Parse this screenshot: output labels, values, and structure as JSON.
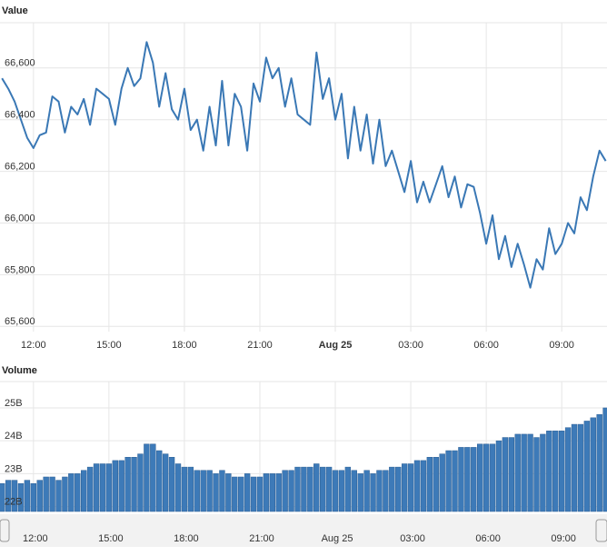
{
  "chart_data": [
    {
      "type": "line",
      "title": "Value",
      "color": "#3a78b5",
      "x": [
        -1.25,
        -1,
        -0.75,
        -0.5,
        -0.25,
        0,
        0.25,
        0.5,
        0.75,
        1,
        1.25,
        1.5,
        1.75,
        2,
        2.25,
        2.5,
        2.75,
        3,
        3.25,
        3.5,
        3.75,
        4,
        4.25,
        4.5,
        4.75,
        5,
        5.25,
        5.5,
        5.75,
        6,
        6.25,
        6.5,
        6.75,
        7,
        7.25,
        7.5,
        7.75,
        8,
        8.25,
        8.5,
        8.75,
        9,
        9.25,
        9.5,
        9.75,
        10,
        10.25,
        10.5,
        10.75,
        11,
        11.25,
        11.5,
        11.75,
        12,
        12.25,
        12.5,
        12.75,
        13,
        13.25,
        13.5,
        13.75,
        14,
        14.25,
        14.5,
        14.75,
        15,
        15.25,
        15.5,
        15.75,
        16,
        16.25,
        16.5,
        16.75,
        17,
        17.25,
        17.5,
        17.75,
        18,
        18.25,
        18.5,
        18.75,
        19,
        19.25,
        19.5,
        19.75,
        20,
        20.25,
        20.5,
        20.75,
        21,
        21.25,
        21.5,
        21.75,
        22,
        22.25,
        22.5,
        22.75
      ],
      "values": [
        66560,
        66520,
        66470,
        66400,
        66330,
        66290,
        66340,
        66350,
        66490,
        66470,
        66350,
        66450,
        66420,
        66480,
        66380,
        66520,
        66500,
        66480,
        66380,
        66520,
        66600,
        66530,
        66560,
        66700,
        66620,
        66450,
        66580,
        66440,
        66400,
        66520,
        66360,
        66400,
        66280,
        66450,
        66300,
        66550,
        66300,
        66500,
        66450,
        66280,
        66540,
        66470,
        66640,
        66560,
        66600,
        66450,
        66560,
        66420,
        66400,
        66380,
        66660,
        66480,
        66560,
        66400,
        66500,
        66250,
        66450,
        66280,
        66420,
        66230,
        66400,
        66220,
        66280,
        66200,
        66120,
        66240,
        66080,
        66160,
        66080,
        66150,
        66220,
        66100,
        66180,
        66060,
        66150,
        66140,
        66040,
        65920,
        66030,
        65860,
        65950,
        65830,
        65920,
        65840,
        65750,
        65860,
        65820,
        65980,
        65880,
        65920,
        66000,
        65960,
        66100,
        66050,
        66180,
        66280,
        66240
      ],
      "xlim": [
        -1.33,
        22.8
      ],
      "ylim": [
        65580,
        66775
      ],
      "xticks": [
        {
          "value": 0,
          "label": "12:00"
        },
        {
          "value": 3,
          "label": "15:00"
        },
        {
          "value": 6,
          "label": "18:00"
        },
        {
          "value": 9,
          "label": "21:00"
        },
        {
          "value": 12,
          "label": "Aug 25"
        },
        {
          "value": 15,
          "label": "03:00"
        },
        {
          "value": 18,
          "label": "06:00"
        },
        {
          "value": 21,
          "label": "09:00"
        }
      ],
      "yticks": [
        {
          "value": 65600,
          "label": "65,600"
        },
        {
          "value": 65800,
          "label": "65,800"
        },
        {
          "value": 66000,
          "label": "66,000"
        },
        {
          "value": 66200,
          "label": "66,200"
        },
        {
          "value": 66400,
          "label": "66,400"
        },
        {
          "value": 66600,
          "label": "66,600"
        }
      ],
      "grid": true
    },
    {
      "type": "bar",
      "title": "Volume",
      "color": "#3d7ab8",
      "x": [
        -1.25,
        -1,
        -0.75,
        -0.5,
        -0.25,
        0,
        0.25,
        0.5,
        0.75,
        1,
        1.25,
        1.5,
        1.75,
        2,
        2.25,
        2.5,
        2.75,
        3,
        3.25,
        3.5,
        3.75,
        4,
        4.25,
        4.5,
        4.75,
        5,
        5.25,
        5.5,
        5.75,
        6,
        6.25,
        6.5,
        6.75,
        7,
        7.25,
        7.5,
        7.75,
        8,
        8.25,
        8.5,
        8.75,
        9,
        9.25,
        9.5,
        9.75,
        10,
        10.25,
        10.5,
        10.75,
        11,
        11.25,
        11.5,
        11.75,
        12,
        12.25,
        12.5,
        12.75,
        13,
        13.25,
        13.5,
        13.75,
        14,
        14.25,
        14.5,
        14.75,
        15,
        15.25,
        15.5,
        15.75,
        16,
        16.25,
        16.5,
        16.75,
        17,
        17.25,
        17.5,
        17.75,
        18,
        18.25,
        18.5,
        18.75,
        19,
        19.25,
        19.5,
        19.75,
        20,
        20.25,
        20.5,
        20.75,
        21,
        21.25,
        21.5,
        21.75,
        22,
        22.25,
        22.5,
        22.75
      ],
      "values": [
        22.7,
        22.8,
        22.8,
        22.7,
        22.8,
        22.7,
        22.8,
        22.9,
        22.9,
        22.8,
        22.9,
        23.0,
        23.0,
        23.1,
        23.2,
        23.3,
        23.3,
        23.3,
        23.4,
        23.4,
        23.5,
        23.5,
        23.6,
        23.9,
        23.9,
        23.7,
        23.6,
        23.5,
        23.3,
        23.2,
        23.2,
        23.1,
        23.1,
        23.1,
        23.0,
        23.1,
        23.0,
        22.9,
        22.9,
        23.0,
        22.9,
        22.9,
        23.0,
        23.0,
        23.0,
        23.1,
        23.1,
        23.2,
        23.2,
        23.2,
        23.3,
        23.2,
        23.2,
        23.1,
        23.1,
        23.2,
        23.1,
        23.0,
        23.1,
        23.0,
        23.1,
        23.1,
        23.2,
        23.2,
        23.3,
        23.3,
        23.4,
        23.4,
        23.5,
        23.5,
        23.6,
        23.7,
        23.7,
        23.8,
        23.8,
        23.8,
        23.9,
        23.9,
        23.9,
        24.0,
        24.1,
        24.1,
        24.2,
        24.2,
        24.2,
        24.1,
        24.2,
        24.3,
        24.3,
        24.3,
        24.4,
        24.5,
        24.5,
        24.6,
        24.7,
        24.8,
        25.0
      ],
      "xlim": [
        -1.33,
        22.8
      ],
      "ylim": [
        21.85,
        25.8
      ],
      "xticks": [
        {
          "value": 0,
          "label": "12:00"
        },
        {
          "value": 3,
          "label": "15:00"
        },
        {
          "value": 6,
          "label": "18:00"
        },
        {
          "value": 9,
          "label": "21:00"
        },
        {
          "value": 12,
          "label": "Aug 25"
        },
        {
          "value": 15,
          "label": "03:00"
        },
        {
          "value": 18,
          "label": "06:00"
        },
        {
          "value": 21,
          "label": "09:00"
        }
      ],
      "yticks": [
        {
          "value": 22,
          "label": "22B"
        },
        {
          "value": 23,
          "label": "23B"
        },
        {
          "value": 24,
          "label": "24B"
        },
        {
          "value": 25,
          "label": "25B"
        }
      ],
      "grid": true
    }
  ]
}
